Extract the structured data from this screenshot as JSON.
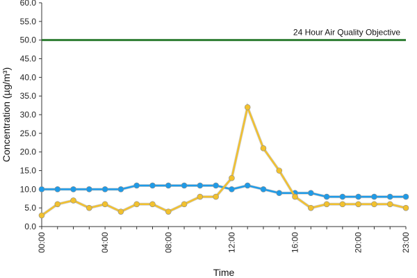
{
  "chart_data": {
    "type": "line",
    "xlabel": "Time",
    "ylabel": "Concentration (µg/m³)",
    "ylim": [
      0,
      60
    ],
    "yticks": [
      "0.0",
      "5.0",
      "10.0",
      "15.0",
      "20.0",
      "25.0",
      "30.0",
      "35.0",
      "40.0",
      "45.0",
      "50.0",
      "55.0",
      "60.0"
    ],
    "x_hours": [
      0,
      1,
      2,
      3,
      4,
      5,
      6,
      7,
      8,
      9,
      10,
      11,
      12,
      13,
      14,
      15,
      16,
      17,
      18,
      19,
      20,
      21,
      22,
      23
    ],
    "xtick_labels": [
      {
        "hour": 0,
        "label": "00:00"
      },
      {
        "hour": 4,
        "label": "04:00"
      },
      {
        "hour": 8,
        "label": "08:00"
      },
      {
        "hour": 12,
        "label": "12:00"
      },
      {
        "hour": 16,
        "label": "16:00"
      },
      {
        "hour": 20,
        "label": "20:00"
      },
      {
        "hour": 23,
        "label": "23:00"
      }
    ],
    "grid": false,
    "legend": "none",
    "series": [
      {
        "color": "#1e9be8",
        "values": [
          10,
          10,
          10,
          10,
          10,
          10,
          11,
          11,
          11,
          11,
          11,
          11,
          10,
          11,
          10,
          9,
          9,
          9,
          8,
          8,
          8,
          8,
          8,
          8
        ]
      },
      {
        "color": "#f2c12e",
        "values": [
          3,
          6,
          7,
          5,
          6,
          4,
          6,
          6,
          4,
          6,
          8,
          8,
          13,
          32,
          21,
          15,
          8,
          5,
          6,
          6,
          6,
          6,
          6,
          5
        ]
      }
    ],
    "reference_lines": [
      {
        "value": 50,
        "label": "24 Hour Air Quality Objective",
        "color": "#2e7d32"
      }
    ]
  }
}
